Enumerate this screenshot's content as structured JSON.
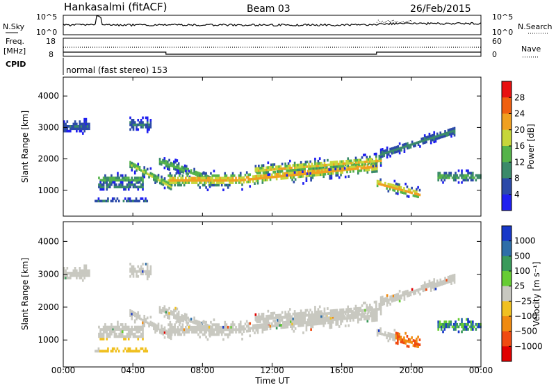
{
  "header": {
    "station": "Hankasalmi (fitACF)",
    "beam": "Beam 03",
    "date": "26/Feb/2015"
  },
  "noise_panel": {
    "left_label": "N.Sky",
    "right_label": "N.Search",
    "left_ticks": [
      "10^5",
      "10^0"
    ],
    "right_ticks": [
      "10^5",
      "10^0"
    ]
  },
  "freq_panel": {
    "left_label_1": "Freq.",
    "left_label_2": "[MHz]",
    "right_label": "Nave",
    "left_ticks": [
      "18",
      "8"
    ],
    "right_ticks": [
      "60",
      "0"
    ]
  },
  "cpid": {
    "label": "CPID",
    "program": "normal (fast stereo) 153"
  },
  "chart_data": [
    {
      "type": "heatmap",
      "quantity": "Power",
      "ylabel": "Slant Range [km]",
      "y_ticks": [
        "1000",
        "2000",
        "3000",
        "4000"
      ],
      "ylim": [
        180,
        4600
      ],
      "xlim": [
        0,
        24
      ],
      "colorbar_label": "Power [dB]",
      "colorbar_ticks": [
        "4",
        "8",
        "12",
        "16",
        "20",
        "24",
        "28"
      ],
      "colors": [
        "#1f1ff0",
        "#2c4aa8",
        "#3b8a6a",
        "#55b34a",
        "#c7d63a",
        "#f0a020",
        "#f06010",
        "#e81010"
      ]
    },
    {
      "type": "heatmap",
      "quantity": "Velocity",
      "ylabel": "Slant Range [km]",
      "y_ticks": [
        "1000",
        "2000",
        "3000",
        "4000"
      ],
      "ylim": [
        180,
        4600
      ],
      "xlim": [
        0,
        24
      ],
      "colorbar_label": "Velocity [m s⁻¹]",
      "colorbar_ticks": [
        "1000",
        "500",
        "100",
        "25",
        "−25",
        "−100",
        "−500",
        "−1000"
      ],
      "colors": [
        "#1838c8",
        "#2e6ea8",
        "#3a9a5a",
        "#66cc33",
        "#c8c8c0",
        "#f0c020",
        "#f08a10",
        "#f04a10",
        "#e00000"
      ],
      "xlabel": "Time UT",
      "x_ticks": [
        "00:00",
        "04:00",
        "08:00",
        "12:00",
        "16:00",
        "20:00",
        "00:00"
      ]
    }
  ]
}
